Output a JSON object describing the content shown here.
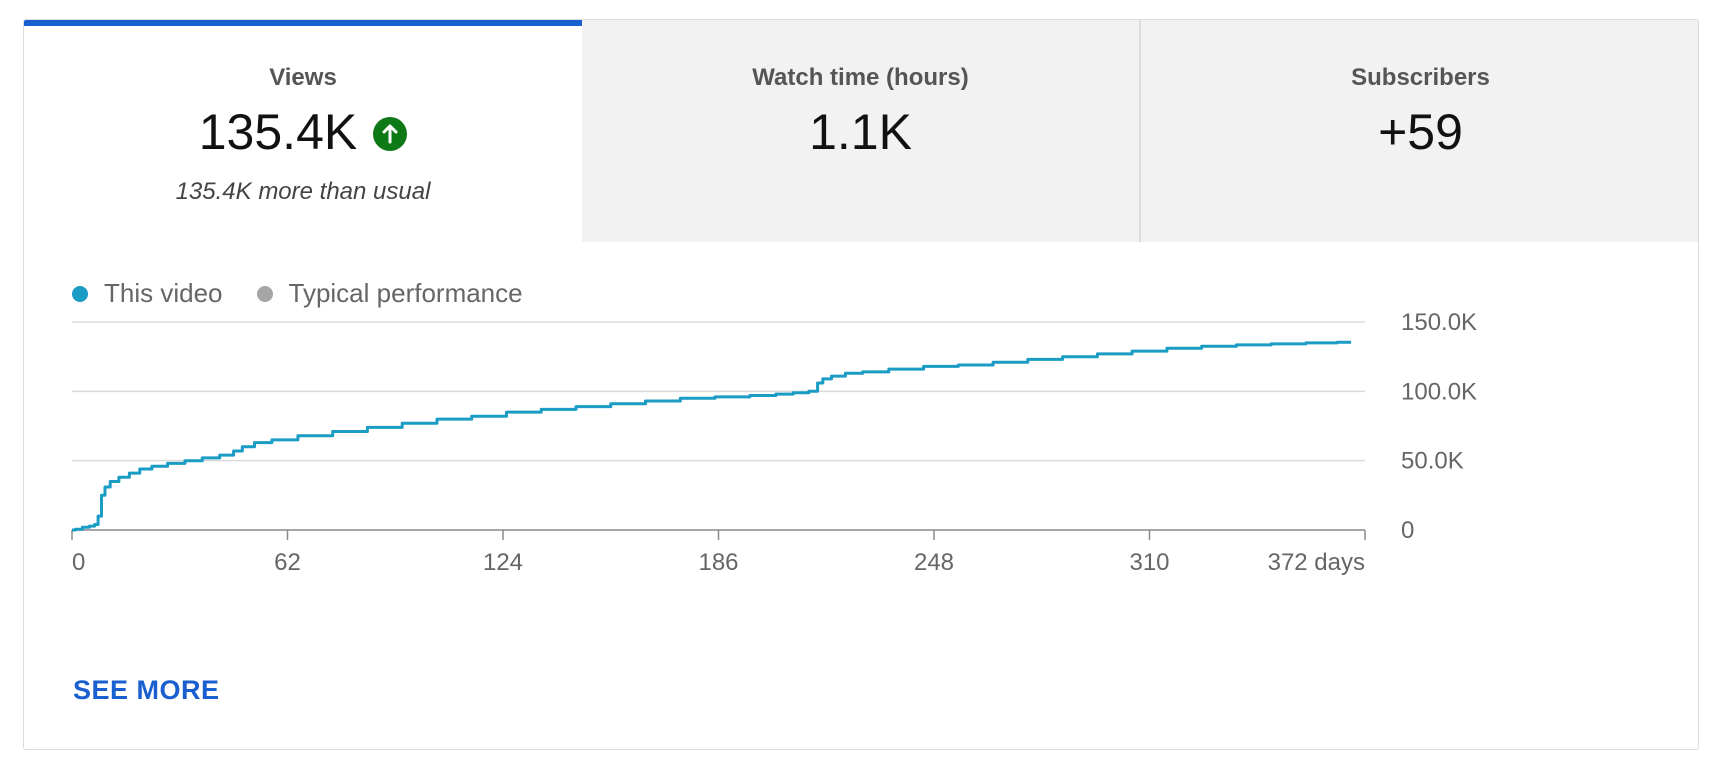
{
  "tabs": [
    {
      "label": "Views",
      "value": "135.4K",
      "note": "135.4K more than usual",
      "active": true,
      "icon": "arrow-up-circle-icon"
    },
    {
      "label": "Watch time (hours)",
      "value": "1.1K",
      "active": false
    },
    {
      "label": "Subscribers",
      "value": "+59",
      "active": false
    }
  ],
  "colors": {
    "accent": "#1a5fcf",
    "series_this_video": "#1a9cc4",
    "series_typical": "#a6a6a6",
    "up_badge": "#0d7a17"
  },
  "legend": [
    {
      "label": "This video",
      "color": "#1a9cc4"
    },
    {
      "label": "Typical performance",
      "color": "#a6a6a6"
    }
  ],
  "see_more": "SEE MORE",
  "chart_data": {
    "type": "line",
    "x_unit_label": "days",
    "xlim": [
      0,
      372
    ],
    "ylim": [
      0,
      150000
    ],
    "x_ticks": [
      {
        "value": 0,
        "label": "0"
      },
      {
        "value": 62,
        "label": "62"
      },
      {
        "value": 124,
        "label": "124"
      },
      {
        "value": 186,
        "label": "186"
      },
      {
        "value": 248,
        "label": "248"
      },
      {
        "value": 310,
        "label": "310"
      },
      {
        "value": 372,
        "label": "372 days"
      }
    ],
    "y_ticks": [
      {
        "value": 0,
        "label": "0"
      },
      {
        "value": 50000,
        "label": "50.0K"
      },
      {
        "value": 100000,
        "label": "100.0K"
      },
      {
        "value": 150000,
        "label": "150.0K"
      }
    ],
    "grid": true,
    "legend_position": "top-left",
    "series": [
      {
        "name": "This video",
        "points": [
          [
            0,
            0
          ],
          [
            2,
            500
          ],
          [
            4,
            2000
          ],
          [
            6,
            2800
          ],
          [
            7,
            4000
          ],
          [
            8,
            10000
          ],
          [
            9,
            25000
          ],
          [
            10,
            31000
          ],
          [
            12,
            35000
          ],
          [
            15,
            38000
          ],
          [
            18,
            41000
          ],
          [
            21,
            44000
          ],
          [
            25,
            46000
          ],
          [
            30,
            48000
          ],
          [
            35,
            50000
          ],
          [
            40,
            52000
          ],
          [
            45,
            54000
          ],
          [
            48,
            57000
          ],
          [
            50,
            60000
          ],
          [
            55,
            63000
          ],
          [
            60,
            65000
          ],
          [
            70,
            68000
          ],
          [
            80,
            71000
          ],
          [
            90,
            74000
          ],
          [
            100,
            77000
          ],
          [
            110,
            80000
          ],
          [
            120,
            82000
          ],
          [
            130,
            85000
          ],
          [
            140,
            87000
          ],
          [
            150,
            89000
          ],
          [
            160,
            91000
          ],
          [
            170,
            93000
          ],
          [
            180,
            95000
          ],
          [
            190,
            96000
          ],
          [
            200,
            97000
          ],
          [
            205,
            98000
          ],
          [
            210,
            99000
          ],
          [
            214,
            100000
          ],
          [
            215,
            106000
          ],
          [
            217,
            109000
          ],
          [
            220,
            111000
          ],
          [
            225,
            113000
          ],
          [
            230,
            114000
          ],
          [
            240,
            116000
          ],
          [
            250,
            118000
          ],
          [
            260,
            119000
          ],
          [
            270,
            121000
          ],
          [
            280,
            123000
          ],
          [
            290,
            125000
          ],
          [
            300,
            127000
          ],
          [
            310,
            129000
          ],
          [
            320,
            131000
          ],
          [
            330,
            132500
          ],
          [
            340,
            133500
          ],
          [
            350,
            134200
          ],
          [
            360,
            134900
          ],
          [
            368,
            135400
          ]
        ]
      }
    ]
  }
}
